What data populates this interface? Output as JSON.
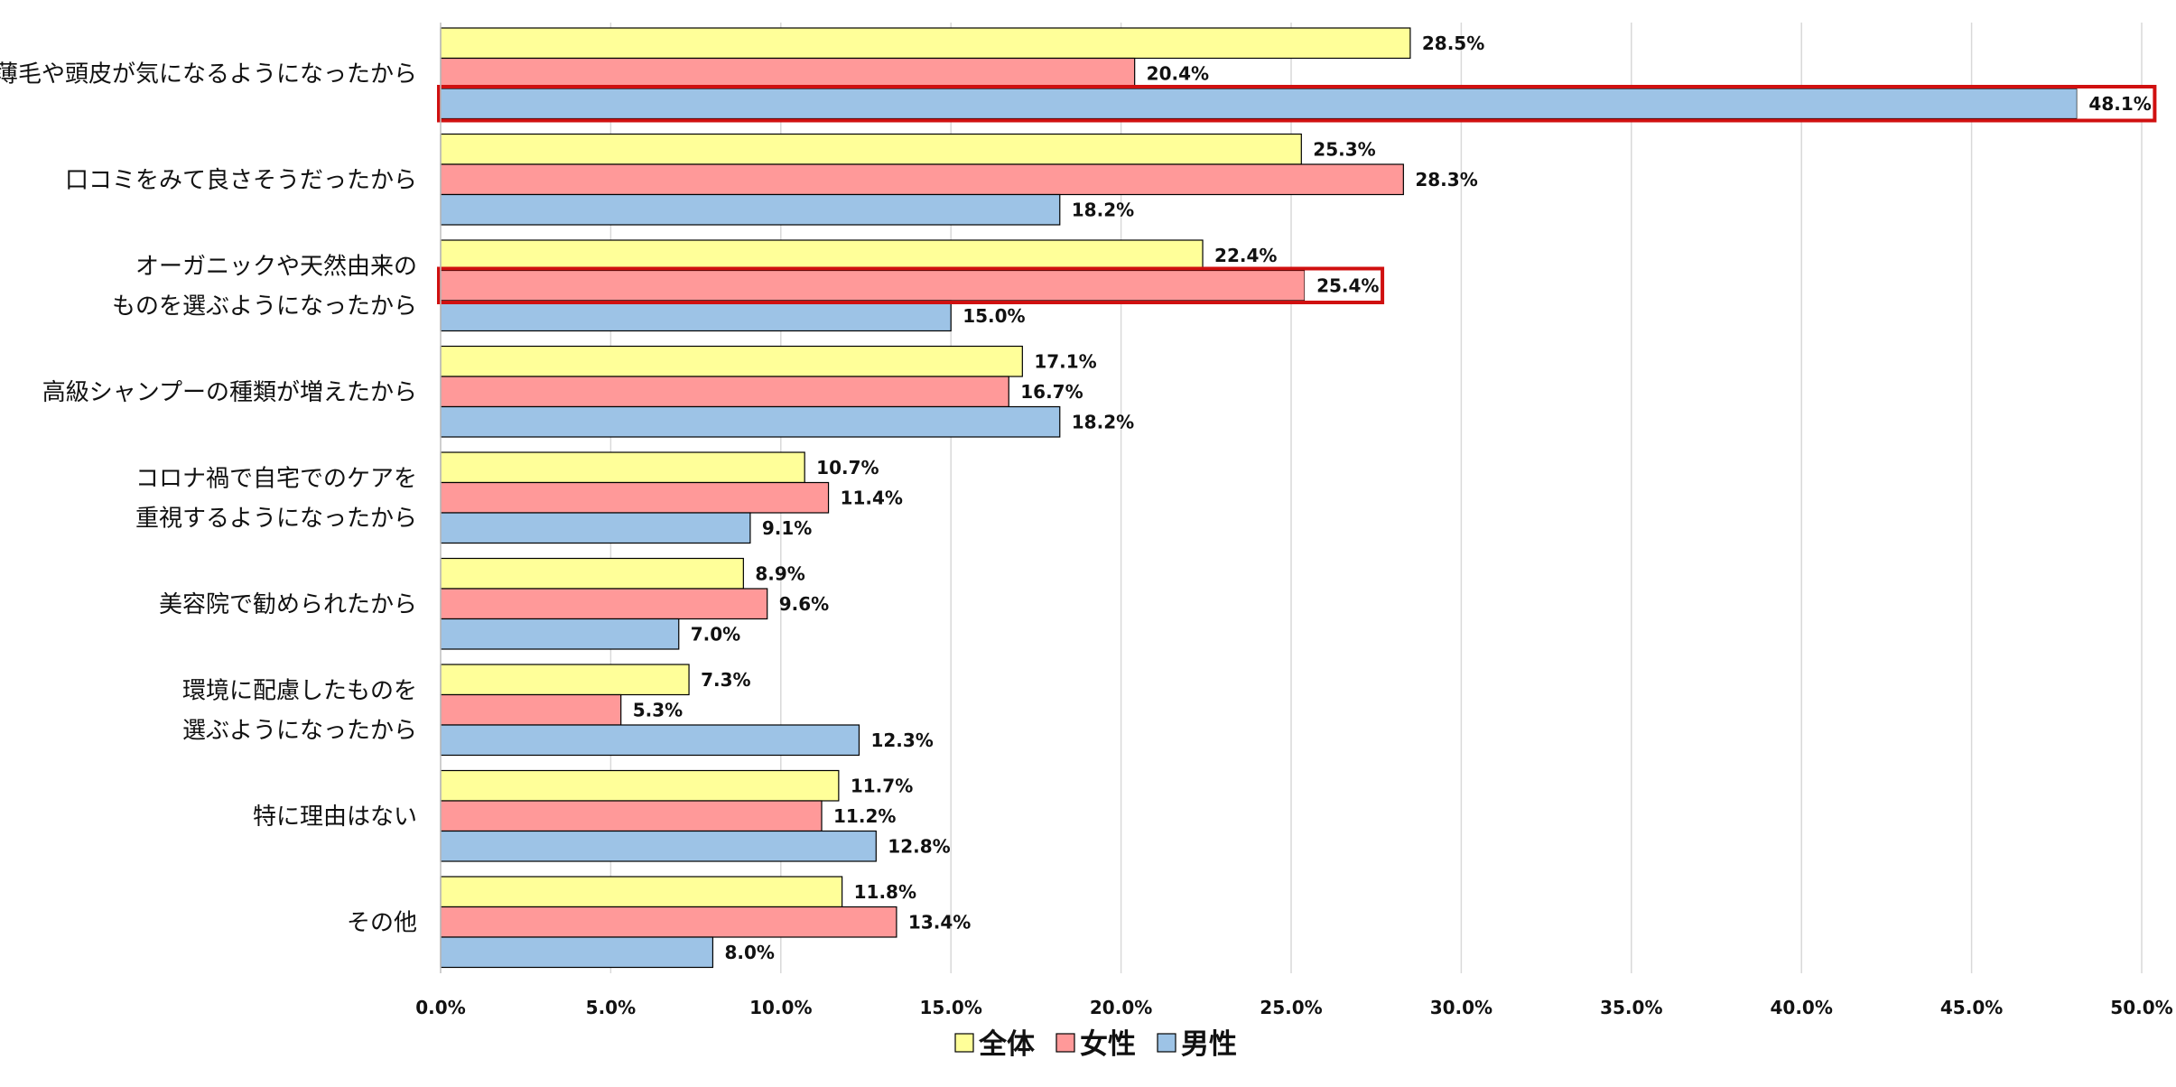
{
  "chart_data": {
    "type": "bar",
    "orientation": "horizontal",
    "title": "",
    "xlabel": "",
    "ylabel": "",
    "xlim": [
      0,
      50
    ],
    "x_ticks": [
      "0.0%",
      "5.0%",
      "10.0%",
      "15.0%",
      "20.0%",
      "25.0%",
      "30.0%",
      "35.0%",
      "40.0%",
      "45.0%",
      "50.0%"
    ],
    "grid": true,
    "legend_position": "bottom",
    "categories": [
      [
        "薄毛や頭皮が気になるようになったから"
      ],
      [
        "口コミをみて良さそうだったから"
      ],
      [
        "オーガニックや天然由来の",
        "ものを選ぶようになったから"
      ],
      [
        "高級シャンプーの種類が増えたから"
      ],
      [
        "コロナ禍で自宅でのケアを",
        "重視するようになったから"
      ],
      [
        "美容院で勧められたから"
      ],
      [
        "環境に配慮したものを",
        "選ぶようになったから"
      ],
      [
        "特に理由はない"
      ],
      [
        "その他"
      ]
    ],
    "series": [
      {
        "name": "全体",
        "color": "#FFFF99",
        "values": [
          28.5,
          25.3,
          22.4,
          17.1,
          10.7,
          8.9,
          7.3,
          11.7,
          11.8
        ],
        "labels": [
          "28.5%",
          "25.3%",
          "22.4%",
          "17.1%",
          "10.7%",
          "8.9%",
          "7.3%",
          "11.7%",
          "11.8%"
        ]
      },
      {
        "name": "女性",
        "color": "#FF9999",
        "values": [
          20.4,
          28.3,
          25.4,
          16.7,
          11.4,
          9.6,
          5.3,
          11.2,
          13.4
        ],
        "labels": [
          "20.4%",
          "28.3%",
          "25.4%",
          "16.7%",
          "11.4%",
          "9.6%",
          "5.3%",
          "11.2%",
          "13.4%"
        ]
      },
      {
        "name": "男性",
        "color": "#9DC3E6",
        "values": [
          48.1,
          18.2,
          15.0,
          18.2,
          9.1,
          7.0,
          12.3,
          12.8,
          8.0
        ],
        "labels": [
          "48.1%",
          "18.2%",
          "15.0%",
          "18.2%",
          "9.1%",
          "7.0%",
          "12.3%",
          "12.8%",
          "8.0%"
        ]
      }
    ],
    "highlights": [
      {
        "category_index": 0,
        "series_index": 2,
        "color": "#D01010"
      },
      {
        "category_index": 2,
        "series_index": 1,
        "color": "#D01010"
      }
    ],
    "legend": [
      "全体",
      "女性",
      "男性"
    ]
  }
}
